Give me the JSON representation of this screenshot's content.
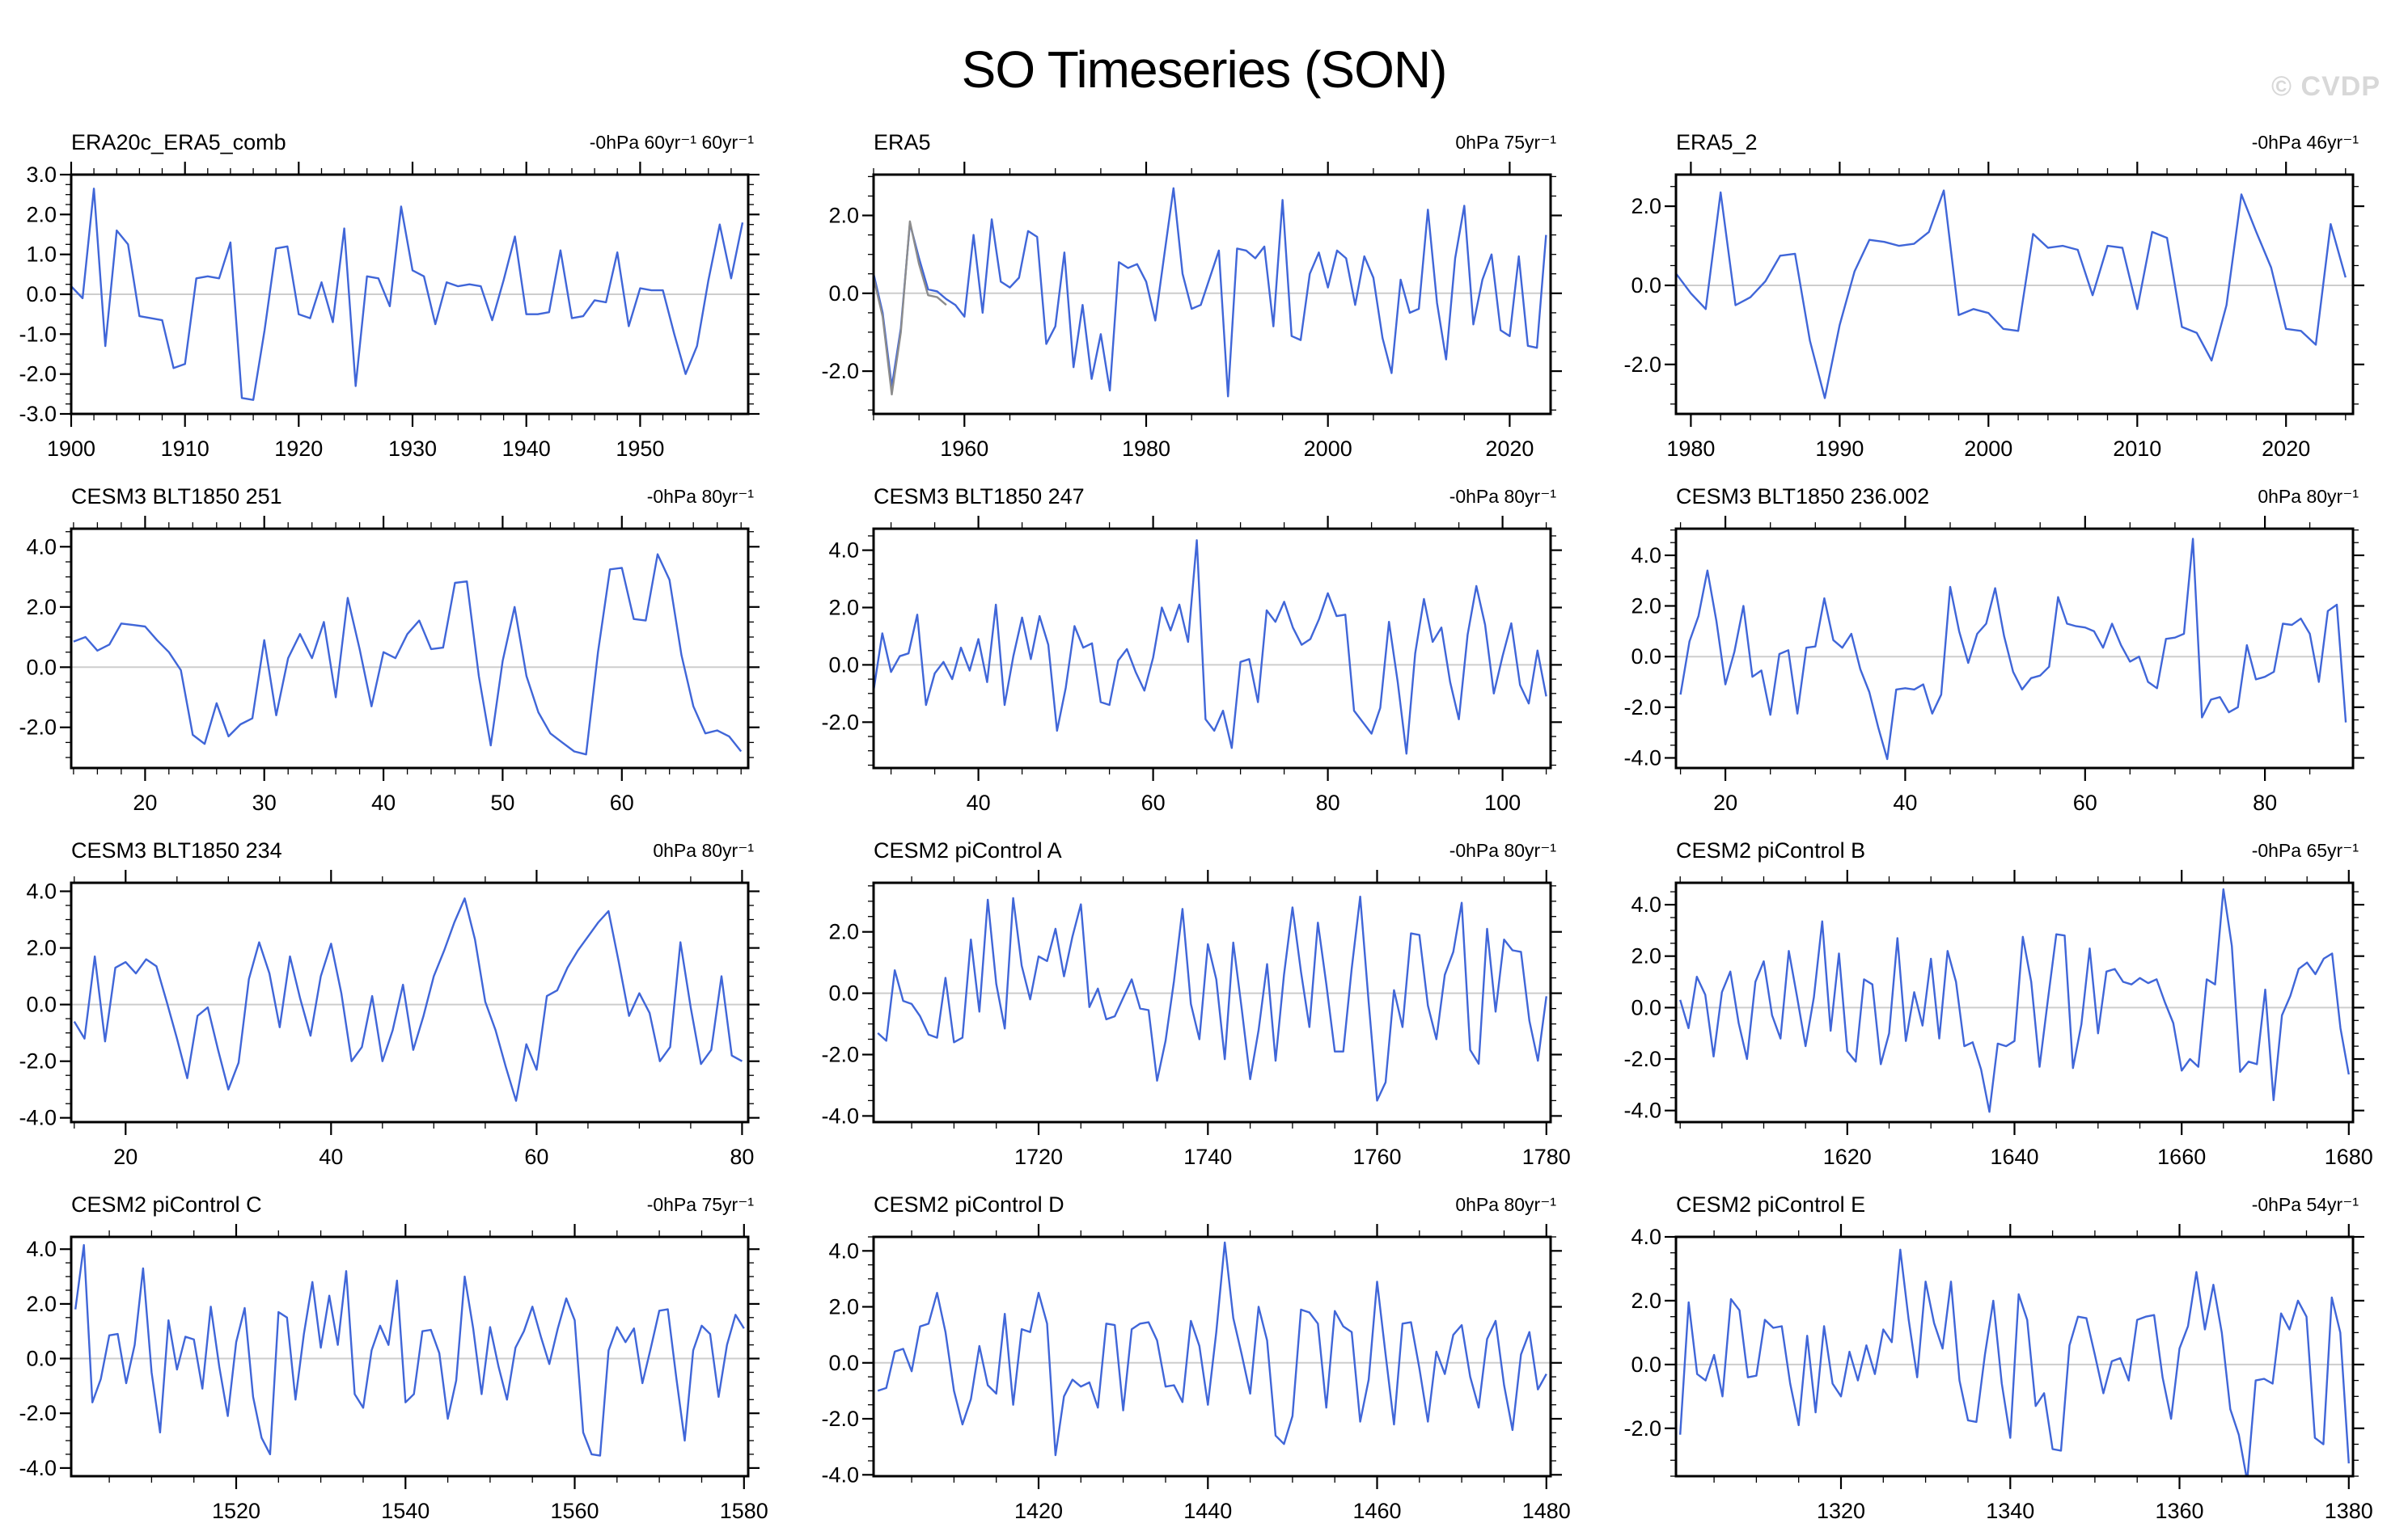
{
  "page": {
    "title": "SO Timeseries (SON)",
    "watermark": "© CVDP"
  },
  "colors": {
    "line": "#4066d8",
    "line_secondary": "#8c8c8c",
    "zero_line": "#cdcdcd",
    "axis": "#000000",
    "watermark": "#d8d8d8",
    "background": "#ffffff"
  },
  "chart_data": [
    {
      "type": "line",
      "title": "ERA20c_ERA5_comb",
      "annotation": "-0hPa 60yr⁻¹ 60yr⁻¹",
      "xlabel": "",
      "ylabel": "",
      "grid": false,
      "legend": "none",
      "x_start": 1900,
      "xlim": [
        1900,
        1959.5
      ],
      "xticks": [
        1900,
        1910,
        1920,
        1930,
        1940,
        1950
      ],
      "x_minor": 2,
      "ylim": [
        -3.0,
        3.0
      ],
      "yticks": [
        3,
        2,
        1,
        0,
        -1,
        -2,
        -3
      ],
      "y_minor": 0.25,
      "values": [
        0.2,
        -0.1,
        2.65,
        -1.3,
        1.6,
        1.25,
        -0.55,
        -0.6,
        -0.65,
        -1.85,
        -1.75,
        0.4,
        0.45,
        0.4,
        1.3,
        -2.6,
        -2.65,
        -0.9,
        1.15,
        1.2,
        -0.5,
        -0.6,
        0.3,
        -0.7,
        1.65,
        -2.3,
        0.45,
        0.4,
        -0.3,
        2.2,
        0.6,
        0.45,
        -0.75,
        0.3,
        0.2,
        0.25,
        0.2,
        -0.65,
        0.35,
        1.45,
        -0.5,
        -0.5,
        -0.45,
        1.1,
        -0.6,
        -0.55,
        -0.15,
        -0.2,
        1.05,
        -0.8,
        0.15,
        0.1,
        0.1,
        -1.0,
        -2.0,
        -1.3,
        0.35,
        1.75,
        0.4,
        1.8
      ]
    },
    {
      "type": "line",
      "title": "ERA5",
      "annotation": "0hPa 75yr⁻¹",
      "xlabel": "",
      "ylabel": "",
      "grid": false,
      "legend": "none",
      "x_start": 1950,
      "xlim": [
        1950,
        2024.5
      ],
      "xticks": [
        1960,
        1980,
        2000,
        2020
      ],
      "x_minor": 5,
      "ylim": [
        -3.1,
        3.05
      ],
      "yticks": [
        2,
        0,
        -2
      ],
      "y_minor": 0.5,
      "values": [
        0.5,
        -0.5,
        -2.4,
        -0.9,
        1.8,
        0.9,
        0.1,
        0.05,
        -0.15,
        -0.3,
        -0.6,
        1.5,
        -0.5,
        1.9,
        0.3,
        0.15,
        0.4,
        1.6,
        1.45,
        -1.3,
        -0.85,
        1.05,
        -1.9,
        -0.3,
        -2.2,
        -1.05,
        -2.5,
        0.8,
        0.65,
        0.75,
        0.3,
        -0.7,
        1.0,
        2.7,
        0.5,
        -0.4,
        -0.3,
        0.4,
        1.1,
        -2.65,
        1.15,
        1.1,
        0.9,
        1.2,
        -0.85,
        2.4,
        -1.1,
        -1.2,
        0.5,
        1.05,
        0.15,
        1.1,
        0.9,
        -0.3,
        0.95,
        0.4,
        -1.15,
        -2.05,
        0.35,
        -0.5,
        -0.4,
        2.15,
        -0.25,
        -1.7,
        0.9,
        2.25,
        -0.8,
        0.35,
        1.0,
        -0.95,
        -1.1,
        0.95,
        -1.35,
        -1.4,
        1.5
      ],
      "secondary_x_start": 1950,
      "secondary_values": [
        0.4,
        -0.6,
        -2.6,
        -1.0,
        1.85,
        0.75,
        -0.05,
        -0.1,
        -0.3
      ]
    },
    {
      "type": "line",
      "title": "ERA5_2",
      "annotation": "-0hPa 46yr⁻¹",
      "xlabel": "",
      "ylabel": "",
      "grid": false,
      "legend": "none",
      "x_start": 1979,
      "xlim": [
        1979,
        2024.5
      ],
      "xticks": [
        1980,
        1990,
        2000,
        2010,
        2020
      ],
      "x_minor": 2,
      "ylim": [
        -3.25,
        2.8
      ],
      "yticks": [
        2,
        0,
        -2
      ],
      "y_minor": 0.5,
      "values": [
        0.3,
        -0.2,
        -0.6,
        2.35,
        -0.5,
        -0.3,
        0.1,
        0.75,
        0.8,
        -1.4,
        -2.85,
        -1.0,
        0.35,
        1.15,
        1.1,
        1.0,
        1.05,
        1.35,
        2.4,
        -0.75,
        -0.6,
        -0.7,
        -1.1,
        -1.15,
        1.3,
        0.95,
        1.0,
        0.9,
        -0.25,
        1.0,
        0.95,
        -0.6,
        1.35,
        1.2,
        -1.05,
        -1.2,
        -1.9,
        -0.5,
        2.3,
        1.35,
        0.45,
        -1.1,
        -1.15,
        -1.5,
        1.55,
        0.2
      ]
    },
    {
      "type": "line",
      "title": "CESM3 BLT1850 251",
      "annotation": "-0hPa 80yr⁻¹",
      "xlabel": "",
      "ylabel": "",
      "grid": false,
      "legend": "none",
      "x_start": 14,
      "xlim": [
        13.8,
        70.6
      ],
      "xticks": [
        20,
        30,
        40,
        50,
        60
      ],
      "x_minor": 2,
      "ylim": [
        -3.35,
        4.6
      ],
      "yticks": [
        4,
        2,
        0,
        -2
      ],
      "y_minor": 0.5,
      "values": [
        0.85,
        1.0,
        0.55,
        0.75,
        1.45,
        1.4,
        1.35,
        0.9,
        0.5,
        -0.1,
        -2.25,
        -2.55,
        -1.2,
        -2.3,
        -1.9,
        -1.7,
        0.9,
        -1.6,
        0.3,
        1.1,
        0.3,
        1.5,
        -1.0,
        2.3,
        0.6,
        -1.3,
        0.5,
        0.3,
        1.1,
        1.55,
        0.6,
        0.65,
        2.8,
        2.85,
        -0.3,
        -2.6,
        0.2,
        2.0,
        -0.3,
        -1.5,
        -2.2,
        -2.5,
        -2.8,
        -2.9,
        0.5,
        3.25,
        3.3,
        1.6,
        1.55,
        3.75,
        2.9,
        0.4,
        -1.3,
        -2.2,
        -2.1,
        -2.3,
        -2.8
      ]
    },
    {
      "type": "line",
      "title": "CESM3 BLT1850 247",
      "annotation": "-0hPa 80yr⁻¹",
      "xlabel": "",
      "ylabel": "",
      "grid": false,
      "legend": "none",
      "x_start": 28,
      "xlim": [
        28,
        105.5
      ],
      "xticks": [
        40,
        60,
        80,
        100
      ],
      "x_minor": 5,
      "ylim": [
        -3.6,
        4.75
      ],
      "yticks": [
        4,
        2,
        0,
        -2
      ],
      "y_minor": 0.5,
      "values": [
        -0.9,
        1.1,
        -0.25,
        0.3,
        0.4,
        1.75,
        -1.4,
        -0.3,
        0.1,
        -0.5,
        0.6,
        -0.2,
        0.9,
        -0.6,
        2.1,
        -1.4,
        0.3,
        1.65,
        0.2,
        1.7,
        0.7,
        -2.3,
        -0.8,
        1.35,
        0.6,
        0.75,
        -1.3,
        -1.4,
        0.15,
        0.55,
        -0.25,
        -0.9,
        0.25,
        2.0,
        1.2,
        2.1,
        0.8,
        4.35,
        -1.9,
        -2.3,
        -1.6,
        -2.9,
        0.1,
        0.2,
        -1.3,
        1.9,
        1.5,
        2.2,
        1.3,
        0.7,
        0.9,
        1.6,
        2.5,
        1.7,
        1.75,
        -1.6,
        -2.0,
        -2.4,
        -1.5,
        1.5,
        -0.6,
        -3.1,
        0.4,
        2.3,
        0.8,
        1.3,
        -0.6,
        -1.9,
        1.05,
        2.75,
        1.4,
        -1.0,
        0.3,
        1.45,
        -0.7,
        -1.35,
        0.5,
        -1.1
      ]
    },
    {
      "type": "line",
      "title": "CESM3 BLT1850 236.002",
      "annotation": "0hPa 80yr⁻¹",
      "xlabel": "",
      "ylabel": "",
      "grid": false,
      "legend": "none",
      "x_start": 15,
      "xlim": [
        14.5,
        89.8
      ],
      "xticks": [
        20,
        40,
        60,
        80
      ],
      "x_minor": 5,
      "ylim": [
        -4.4,
        5.05
      ],
      "yticks": [
        4,
        2,
        0,
        -2,
        -4
      ],
      "y_minor": 0.5,
      "values": [
        -1.5,
        0.6,
        1.6,
        3.4,
        1.4,
        -1.1,
        0.2,
        2.0,
        -0.8,
        -0.55,
        -2.3,
        0.1,
        0.25,
        -2.25,
        0.35,
        0.4,
        2.3,
        0.65,
        0.35,
        0.9,
        -0.5,
        -1.4,
        -2.8,
        -4.05,
        -1.3,
        -1.25,
        -1.3,
        -1.1,
        -2.25,
        -1.5,
        2.75,
        1.0,
        -0.25,
        0.9,
        1.3,
        2.7,
        0.8,
        -0.6,
        -1.3,
        -0.85,
        -0.75,
        -0.4,
        2.35,
        1.3,
        1.2,
        1.15,
        1.0,
        0.35,
        1.3,
        0.45,
        -0.2,
        0.0,
        -1.0,
        -1.25,
        0.7,
        0.75,
        0.9,
        4.65,
        -2.4,
        -1.7,
        -1.6,
        -2.2,
        -2.0,
        0.45,
        -0.9,
        -0.8,
        -0.6,
        1.3,
        1.25,
        1.5,
        0.9,
        -1.0,
        1.8,
        2.05,
        -2.6
      ]
    },
    {
      "type": "line",
      "title": "CESM3 BLT1850 234",
      "annotation": "0hPa 80yr⁻¹",
      "xlabel": "",
      "ylabel": "",
      "grid": false,
      "legend": "none",
      "x_start": 15,
      "xlim": [
        14.7,
        80.6
      ],
      "xticks": [
        20,
        40,
        60,
        80
      ],
      "x_minor": 5,
      "ylim": [
        -4.15,
        4.3
      ],
      "yticks": [
        4,
        2,
        0,
        -2,
        -4
      ],
      "y_minor": 0.5,
      "values": [
        -0.6,
        -1.2,
        1.7,
        -1.3,
        1.3,
        1.5,
        1.1,
        1.6,
        1.35,
        0.1,
        -1.2,
        -2.6,
        -0.4,
        -0.1,
        -1.6,
        -3.0,
        -2.05,
        0.9,
        2.2,
        1.1,
        -0.8,
        1.7,
        0.2,
        -1.1,
        1.0,
        2.15,
        0.4,
        -2.0,
        -1.5,
        0.3,
        -2.0,
        -0.9,
        0.7,
        -1.6,
        -0.4,
        1.0,
        1.9,
        2.9,
        3.75,
        2.3,
        0.1,
        -0.9,
        -2.2,
        -3.4,
        -1.4,
        -2.3,
        0.3,
        0.5,
        1.3,
        1.9,
        2.4,
        2.9,
        3.3,
        1.5,
        -0.4,
        0.4,
        -0.3,
        -2.0,
        -1.5,
        2.2,
        -0.1,
        -2.1,
        -1.6,
        1.0,
        -1.8,
        -2.0
      ]
    },
    {
      "type": "line",
      "title": "CESM2 piControl A",
      "annotation": "-0hPa 80yr⁻¹",
      "xlabel": "",
      "ylabel": "",
      "grid": false,
      "legend": "none",
      "x_start": 1701,
      "xlim": [
        1700.5,
        1780.5
      ],
      "xticks": [
        1720,
        1740,
        1760,
        1780
      ],
      "x_minor": 5,
      "ylim": [
        -4.2,
        3.6
      ],
      "yticks": [
        2,
        0,
        -2,
        -4
      ],
      "y_minor": 0.5,
      "values": [
        -1.3,
        -1.55,
        0.75,
        -0.25,
        -0.35,
        -0.75,
        -1.35,
        -1.45,
        0.5,
        -1.6,
        -1.45,
        1.75,
        -0.6,
        3.05,
        0.3,
        -1.15,
        3.1,
        0.9,
        -0.2,
        1.2,
        1.05,
        2.1,
        0.55,
        1.85,
        2.9,
        -0.45,
        0.15,
        -0.85,
        -0.75,
        -0.15,
        0.45,
        -0.5,
        -0.55,
        -2.85,
        -1.55,
        0.4,
        2.75,
        -0.35,
        -1.5,
        1.6,
        0.45,
        -2.15,
        1.65,
        -0.5,
        -2.8,
        -1.2,
        0.95,
        -2.2,
        0.6,
        2.8,
        0.7,
        -1.1,
        2.3,
        0.3,
        -1.9,
        -1.9,
        0.8,
        3.15,
        -0.3,
        -3.5,
        -2.9,
        0.1,
        -1.1,
        1.95,
        1.9,
        -0.4,
        -1.5,
        0.6,
        1.35,
        2.95,
        -1.85,
        -2.3,
        2.1,
        -0.6,
        1.75,
        1.4,
        1.35,
        -0.9,
        -2.2,
        -0.1
      ]
    },
    {
      "type": "line",
      "title": "CESM2 piControl B",
      "annotation": "-0hPa 65yr⁻¹",
      "xlabel": "",
      "ylabel": "",
      "grid": false,
      "legend": "none",
      "x_start": 1600,
      "xlim": [
        1599.5,
        1680.5
      ],
      "xticks": [
        1620,
        1640,
        1660,
        1680
      ],
      "x_minor": 5,
      "ylim": [
        -4.45,
        4.85
      ],
      "yticks": [
        4,
        2,
        0,
        -2,
        -4
      ],
      "y_minor": 0.5,
      "values": [
        0.3,
        -0.8,
        1.2,
        0.5,
        -1.9,
        0.6,
        1.4,
        -0.6,
        -2.0,
        1.0,
        1.8,
        -0.3,
        -1.2,
        2.2,
        0.4,
        -1.5,
        0.4,
        3.35,
        -0.9,
        2.1,
        -1.7,
        -2.1,
        1.1,
        0.9,
        -2.2,
        -1.0,
        2.7,
        -1.3,
        0.6,
        -0.7,
        1.9,
        -1.2,
        2.2,
        1.0,
        -1.5,
        -1.35,
        -2.4,
        -4.05,
        -1.4,
        -1.5,
        -1.3,
        2.75,
        1.0,
        -2.3,
        0.3,
        2.85,
        2.8,
        -2.35,
        -0.65,
        2.3,
        -1.0,
        1.4,
        1.5,
        1.0,
        0.9,
        1.15,
        0.95,
        1.1,
        0.2,
        -0.6,
        -2.45,
        -2.0,
        -2.3,
        1.1,
        0.9,
        4.6,
        2.4,
        -2.5,
        -2.1,
        -2.2,
        0.7,
        -3.6,
        -0.3,
        0.45,
        1.5,
        1.75,
        1.3,
        1.9,
        2.1,
        -0.8,
        -2.6
      ]
    },
    {
      "type": "line",
      "title": "CESM2 piControl C",
      "annotation": "-0hPa 75yr⁻¹",
      "xlabel": "",
      "ylabel": "",
      "grid": false,
      "legend": "none",
      "x_start": 1501,
      "xlim": [
        1500.5,
        1580.5
      ],
      "xticks": [
        1520,
        1540,
        1560,
        1580
      ],
      "x_minor": 5,
      "ylim": [
        -4.3,
        4.45
      ],
      "yticks": [
        4,
        2,
        0,
        -2,
        -4
      ],
      "y_minor": 0.5,
      "values": [
        1.8,
        4.15,
        -1.6,
        -0.75,
        0.85,
        0.9,
        -0.9,
        0.5,
        3.3,
        -0.5,
        -2.7,
        1.4,
        -0.4,
        0.8,
        0.7,
        -1.1,
        1.9,
        -0.3,
        -2.1,
        0.6,
        1.85,
        -1.4,
        -2.9,
        -3.5,
        1.7,
        1.5,
        -1.5,
        0.9,
        2.8,
        0.4,
        2.3,
        0.5,
        3.2,
        -1.3,
        -1.8,
        0.3,
        1.2,
        0.5,
        2.85,
        -1.6,
        -1.3,
        1.0,
        1.05,
        0.2,
        -2.2,
        -0.8,
        3.0,
        1.1,
        -1.3,
        1.15,
        -0.3,
        -1.5,
        0.4,
        1.0,
        1.9,
        0.8,
        -0.2,
        1.1,
        2.2,
        1.4,
        -2.7,
        -3.5,
        -3.55,
        0.3,
        1.15,
        0.6,
        1.1,
        -0.9,
        0.4,
        1.75,
        1.8,
        -0.7,
        -3.0,
        0.3,
        1.2,
        0.9,
        -1.4,
        0.5,
        1.6,
        1.1
      ]
    },
    {
      "type": "line",
      "title": "CESM2 piControl D",
      "annotation": "0hPa 80yr⁻¹",
      "xlabel": "",
      "ylabel": "",
      "grid": false,
      "legend": "none",
      "x_start": 1401,
      "xlim": [
        1400.5,
        1480.5
      ],
      "xticks": [
        1420,
        1440,
        1460,
        1480
      ],
      "x_minor": 5,
      "ylim": [
        -4.05,
        4.5
      ],
      "yticks": [
        4,
        2,
        0,
        -2,
        -4
      ],
      "y_minor": 0.5,
      "values": [
        -1.0,
        -0.9,
        0.4,
        0.5,
        -0.3,
        1.3,
        1.4,
        2.5,
        1.1,
        -1.0,
        -2.2,
        -1.3,
        0.6,
        -0.8,
        -1.1,
        1.75,
        -1.5,
        1.2,
        1.1,
        2.5,
        1.4,
        -3.3,
        -1.2,
        -0.6,
        -0.85,
        -0.7,
        -1.6,
        1.4,
        1.35,
        -1.7,
        1.2,
        1.4,
        1.45,
        0.8,
        -0.85,
        -0.8,
        -1.4,
        1.5,
        0.6,
        -1.5,
        1.1,
        4.3,
        1.6,
        0.3,
        -1.1,
        2.0,
        0.8,
        -2.6,
        -2.9,
        -1.9,
        1.9,
        1.8,
        1.4,
        -1.6,
        1.85,
        1.3,
        1.1,
        -2.1,
        -0.6,
        2.9,
        0.3,
        -2.2,
        1.4,
        1.45,
        -0.2,
        -2.1,
        0.4,
        -0.4,
        1.0,
        1.35,
        -0.5,
        -1.6,
        0.85,
        1.5,
        -0.8,
        -2.4,
        0.3,
        1.1,
        -0.95,
        -0.4
      ]
    },
    {
      "type": "line",
      "title": "CESM2 piControl E",
      "annotation": "-0hPa 54yr⁻¹",
      "xlabel": "",
      "ylabel": "",
      "grid": false,
      "legend": "none",
      "x_start": 1301,
      "xlim": [
        1300.5,
        1380.5
      ],
      "xticks": [
        1320,
        1340,
        1360,
        1380
      ],
      "x_minor": 5,
      "ylim": [
        -3.5,
        4.0
      ],
      "yticks": [
        4,
        2,
        0,
        -2
      ],
      "y_minor": 0.5,
      "values": [
        -2.2,
        1.95,
        -0.3,
        -0.5,
        0.3,
        -1.0,
        2.05,
        1.7,
        -0.4,
        -0.35,
        1.4,
        1.15,
        1.2,
        -0.6,
        -1.9,
        0.9,
        -1.5,
        1.2,
        -0.6,
        -1.0,
        0.4,
        -0.5,
        0.6,
        -0.3,
        1.1,
        0.7,
        3.6,
        1.4,
        -0.4,
        2.6,
        1.3,
        0.5,
        2.6,
        -0.5,
        -1.75,
        -1.8,
        0.3,
        2.0,
        -0.6,
        -2.3,
        2.2,
        1.4,
        -1.3,
        -0.9,
        -2.65,
        -2.7,
        0.6,
        1.5,
        1.45,
        0.3,
        -0.9,
        0.1,
        0.2,
        -0.5,
        1.4,
        1.5,
        1.55,
        -0.4,
        -1.7,
        0.5,
        1.2,
        2.9,
        1.1,
        2.5,
        1.0,
        -1.4,
        -2.2,
        -3.65,
        -0.5,
        -0.45,
        -0.6,
        1.6,
        1.1,
        2.0,
        1.5,
        -2.3,
        -2.5,
        2.1,
        1.0,
        -3.1
      ]
    }
  ]
}
